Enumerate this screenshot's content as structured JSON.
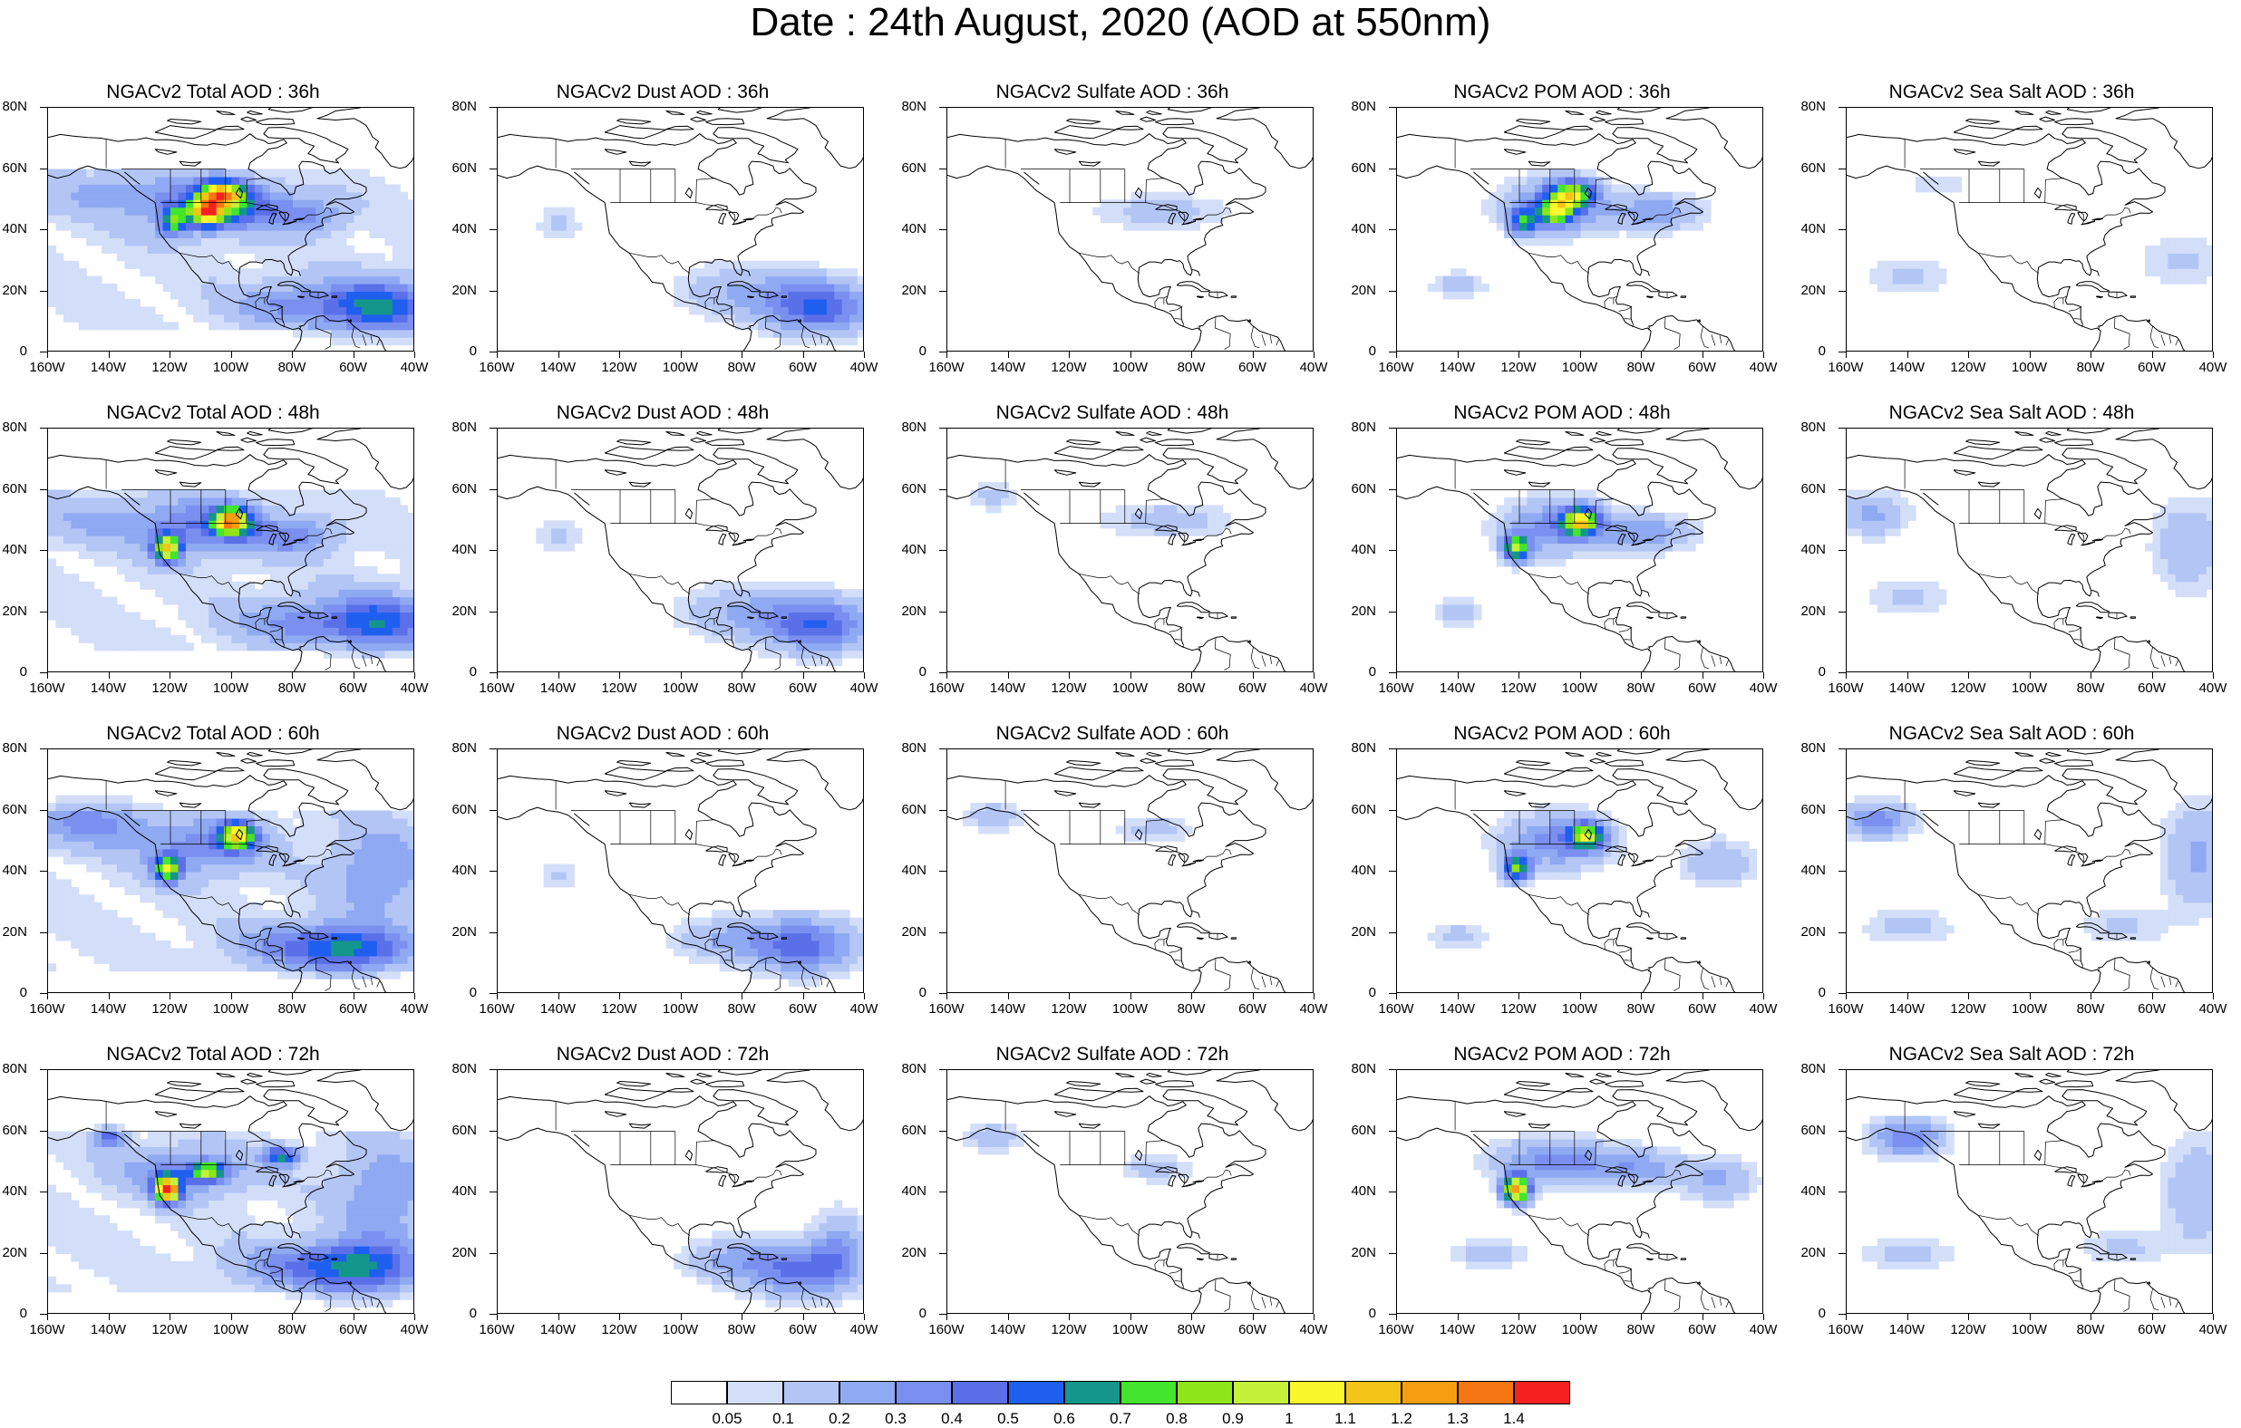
{
  "title": "Date : 24th August, 2020 (AOD at 550nm)",
  "y_ticks": [
    "80N",
    "60N",
    "40N",
    "20N",
    "0"
  ],
  "x_ticks": [
    "160W",
    "140W",
    "120W",
    "100W",
    "80W",
    "60W",
    "40W"
  ],
  "panels": [
    {
      "title": "NGACv2 Total AOD : 36h",
      "species": "total",
      "hour": 36
    },
    {
      "title": "NGACv2 Dust AOD : 36h",
      "species": "dust",
      "hour": 36
    },
    {
      "title": "NGACv2 Sulfate AOD : 36h",
      "species": "sulfate",
      "hour": 36
    },
    {
      "title": "NGACv2 POM AOD : 36h",
      "species": "pom",
      "hour": 36
    },
    {
      "title": "NGACv2 Sea Salt AOD : 36h",
      "species": "seasalt",
      "hour": 36
    },
    {
      "title": "NGACv2 Total AOD : 48h",
      "species": "total",
      "hour": 48
    },
    {
      "title": "NGACv2 Dust AOD : 48h",
      "species": "dust",
      "hour": 48
    },
    {
      "title": "NGACv2 Sulfate AOD : 48h",
      "species": "sulfate",
      "hour": 48
    },
    {
      "title": "NGACv2 POM AOD : 48h",
      "species": "pom",
      "hour": 48
    },
    {
      "title": "NGACv2 Sea Salt AOD : 48h",
      "species": "seasalt",
      "hour": 48
    },
    {
      "title": "NGACv2 Total AOD : 60h",
      "species": "total",
      "hour": 60
    },
    {
      "title": "NGACv2 Dust AOD : 60h",
      "species": "dust",
      "hour": 60
    },
    {
      "title": "NGACv2 Sulfate AOD : 60h",
      "species": "sulfate",
      "hour": 60
    },
    {
      "title": "NGACv2 POM AOD : 60h",
      "species": "pom",
      "hour": 60
    },
    {
      "title": "NGACv2 Sea Salt AOD : 60h",
      "species": "seasalt",
      "hour": 60
    },
    {
      "title": "NGACv2 Total AOD : 72h",
      "species": "total",
      "hour": 72
    },
    {
      "title": "NGACv2 Dust AOD : 72h",
      "species": "dust",
      "hour": 72
    },
    {
      "title": "NGACv2 Sulfate AOD : 72h",
      "species": "sulfate",
      "hour": 72
    },
    {
      "title": "NGACv2 POM AOD : 72h",
      "species": "pom",
      "hour": 72
    },
    {
      "title": "NGACv2 Sea Salt  AOD : 72h",
      "species": "seasalt",
      "hour": 72
    }
  ],
  "colorbar": {
    "colors": [
      "#ffffff",
      "#d3def9",
      "#b2c5f5",
      "#8fa9f2",
      "#7a8ff0",
      "#5a6fe8",
      "#1f5ff0",
      "#15968a",
      "#43e52d",
      "#8ee61a",
      "#c4f23b",
      "#fbf72d",
      "#f5c418",
      "#f59e10",
      "#f57613",
      "#f52121"
    ],
    "labels": [
      "0.05",
      "0.1",
      "0.2",
      "0.3",
      "0.4",
      "0.5",
      "0.6",
      "0.7",
      "0.8",
      "0.9",
      "1",
      "1.1",
      "1.2",
      "1.3",
      "1.4"
    ]
  }
}
